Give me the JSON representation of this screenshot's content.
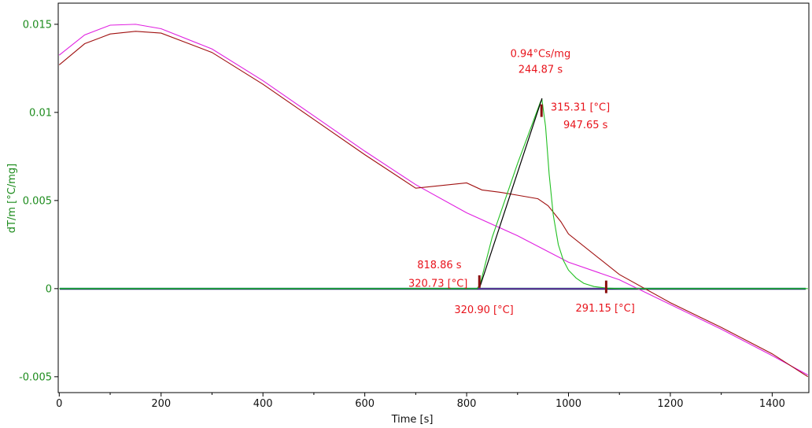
{
  "chart_data": {
    "type": "line",
    "xlabel": "Time [s]",
    "ylabel": "dT/m  [°C/mg]",
    "xlim": [
      -2,
      1472
    ],
    "ylim": [
      -0.0059,
      0.0162
    ],
    "x_ticks": [
      0,
      200,
      400,
      600,
      800,
      1000,
      1200,
      1400
    ],
    "x_tick_labels": [
      "0",
      "200",
      "400",
      "600",
      "800",
      "1000",
      "1200",
      "1400"
    ],
    "y_ticks": [
      0.015,
      0.01,
      0.005,
      0,
      -0.005
    ],
    "y_tick_labels": [
      "0.015",
      "0.01",
      "0.005",
      "0",
      "-0.005"
    ],
    "grid": false,
    "legend": "none",
    "colors": {
      "axis_text": "#1e8c1e",
      "annotation": "#e8141c",
      "magenta": "#e020e0",
      "darkred": "#a01010",
      "green": "#22c022",
      "black": "#000000",
      "baseline_teal": "#1a7a7a",
      "baseline_navy": "#102060",
      "baseline_purple": "#7a2aa8",
      "marker": "#8b1010"
    },
    "series": [
      {
        "color": "#e020e0",
        "x": [
          0,
          50,
          100,
          150,
          200,
          300,
          400,
          500,
          600,
          700,
          800,
          900,
          1000,
          1100,
          1200,
          1300,
          1400,
          1470
        ],
        "y": [
          0.01325,
          0.0144,
          0.01495,
          0.015,
          0.01475,
          0.0136,
          0.0118,
          0.0098,
          0.0078,
          0.0059,
          0.0043,
          0.003,
          0.0015,
          0.0005,
          -0.0009,
          -0.0023,
          -0.0038,
          -0.0049
        ]
      },
      {
        "color": "#a01010",
        "x": [
          0,
          50,
          100,
          150,
          200,
          300,
          400,
          500,
          600,
          700,
          800,
          830,
          870,
          900,
          940,
          960,
          985,
          1000,
          1100,
          1200,
          1300,
          1400,
          1470
        ],
        "y": [
          0.0127,
          0.0139,
          0.01445,
          0.0146,
          0.0145,
          0.0134,
          0.0116,
          0.0096,
          0.0076,
          0.0057,
          0.006,
          0.0056,
          0.00545,
          0.0053,
          0.0051,
          0.0047,
          0.0038,
          0.0031,
          0.0008,
          -0.0008,
          -0.0022,
          -0.0037,
          -0.005
        ]
      },
      {
        "color": "#22c022",
        "x": [
          0,
          820,
          826,
          850,
          900,
          945,
          948,
          955,
          962,
          970,
          980,
          990,
          1000,
          1015,
          1030,
          1050,
          1075,
          1100,
          1200,
          1300,
          1400,
          1470
        ],
        "y": [
          0,
          0,
          0.0002,
          0.0029,
          0.0071,
          0.0106,
          0.0107,
          0.0092,
          0.0065,
          0.0042,
          0.0025,
          0.0016,
          0.00105,
          0.0006,
          0.0003,
          0.00012,
          3e-05,
          0,
          0,
          0,
          0,
          0
        ]
      },
      {
        "color": "#000000",
        "x": [
          826,
          948
        ],
        "y": [
          0.0001,
          0.0108
        ]
      },
      {
        "color": "#7a2aa8",
        "x": [
          822,
          1075
        ],
        "y": [
          0,
          0
        ]
      }
    ],
    "markers": [
      {
        "x": 825,
        "y": 0.0004
      },
      {
        "x": 947,
        "y": 0.0101
      },
      {
        "x": 1074,
        "y": 0.0001
      }
    ],
    "annotations": [
      {
        "text": "0.94°Cs/mg",
        "x": 945,
        "y": 0.01315,
        "anchor": "middle"
      },
      {
        "text": "244.87 s",
        "x": 945,
        "y": 0.01225,
        "anchor": "middle"
      },
      {
        "text": "315.31 [°C]",
        "x": 965,
        "y": 0.0101,
        "anchor": "start"
      },
      {
        "text": "947.65 s",
        "x": 990,
        "y": 0.0091,
        "anchor": "start"
      },
      {
        "text": "818.86 s",
        "x": 790,
        "y": 0.00115,
        "anchor": "end"
      },
      {
        "text": "320.73 [°C]",
        "x": 802,
        "y": 0.0001,
        "anchor": "end"
      },
      {
        "text": "320.90 [°C]",
        "x": 834,
        "y": -0.0014,
        "anchor": "middle"
      },
      {
        "text": "291.15 [°C]",
        "x": 1072,
        "y": -0.0013,
        "anchor": "middle"
      }
    ]
  }
}
